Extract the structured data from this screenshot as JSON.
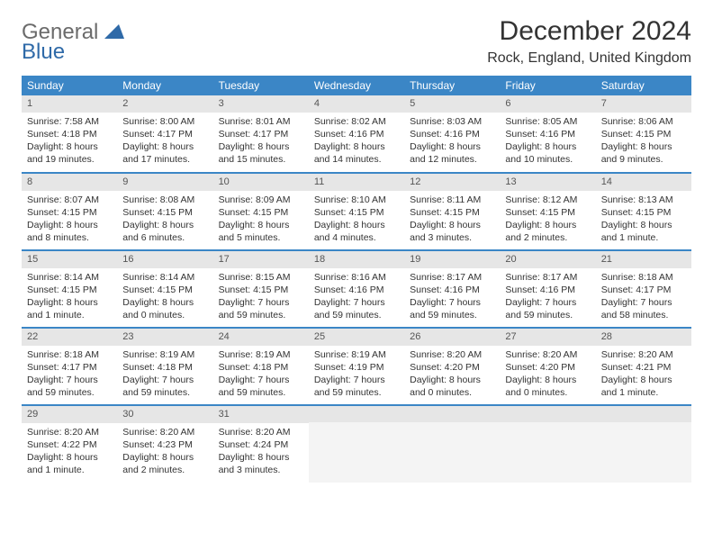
{
  "brand": {
    "text1": "General",
    "text2": "Blue"
  },
  "title": "December 2024",
  "location": "Rock, England, United Kingdom",
  "colors": {
    "header_bg": "#3b86c6",
    "header_fg": "#ffffff",
    "daynum_bg": "#e6e6e6",
    "rule": "#3b86c6",
    "logo_gray": "#6b6b6b",
    "logo_blue": "#2f6aa8"
  },
  "weekdays": [
    "Sunday",
    "Monday",
    "Tuesday",
    "Wednesday",
    "Thursday",
    "Friday",
    "Saturday"
  ],
  "weeks": [
    [
      {
        "n": "1",
        "sunrise": "Sunrise: 7:58 AM",
        "sunset": "Sunset: 4:18 PM",
        "day": "Daylight: 8 hours and 19 minutes."
      },
      {
        "n": "2",
        "sunrise": "Sunrise: 8:00 AM",
        "sunset": "Sunset: 4:17 PM",
        "day": "Daylight: 8 hours and 17 minutes."
      },
      {
        "n": "3",
        "sunrise": "Sunrise: 8:01 AM",
        "sunset": "Sunset: 4:17 PM",
        "day": "Daylight: 8 hours and 15 minutes."
      },
      {
        "n": "4",
        "sunrise": "Sunrise: 8:02 AM",
        "sunset": "Sunset: 4:16 PM",
        "day": "Daylight: 8 hours and 14 minutes."
      },
      {
        "n": "5",
        "sunrise": "Sunrise: 8:03 AM",
        "sunset": "Sunset: 4:16 PM",
        "day": "Daylight: 8 hours and 12 minutes."
      },
      {
        "n": "6",
        "sunrise": "Sunrise: 8:05 AM",
        "sunset": "Sunset: 4:16 PM",
        "day": "Daylight: 8 hours and 10 minutes."
      },
      {
        "n": "7",
        "sunrise": "Sunrise: 8:06 AM",
        "sunset": "Sunset: 4:15 PM",
        "day": "Daylight: 8 hours and 9 minutes."
      }
    ],
    [
      {
        "n": "8",
        "sunrise": "Sunrise: 8:07 AM",
        "sunset": "Sunset: 4:15 PM",
        "day": "Daylight: 8 hours and 8 minutes."
      },
      {
        "n": "9",
        "sunrise": "Sunrise: 8:08 AM",
        "sunset": "Sunset: 4:15 PM",
        "day": "Daylight: 8 hours and 6 minutes."
      },
      {
        "n": "10",
        "sunrise": "Sunrise: 8:09 AM",
        "sunset": "Sunset: 4:15 PM",
        "day": "Daylight: 8 hours and 5 minutes."
      },
      {
        "n": "11",
        "sunrise": "Sunrise: 8:10 AM",
        "sunset": "Sunset: 4:15 PM",
        "day": "Daylight: 8 hours and 4 minutes."
      },
      {
        "n": "12",
        "sunrise": "Sunrise: 8:11 AM",
        "sunset": "Sunset: 4:15 PM",
        "day": "Daylight: 8 hours and 3 minutes."
      },
      {
        "n": "13",
        "sunrise": "Sunrise: 8:12 AM",
        "sunset": "Sunset: 4:15 PM",
        "day": "Daylight: 8 hours and 2 minutes."
      },
      {
        "n": "14",
        "sunrise": "Sunrise: 8:13 AM",
        "sunset": "Sunset: 4:15 PM",
        "day": "Daylight: 8 hours and 1 minute."
      }
    ],
    [
      {
        "n": "15",
        "sunrise": "Sunrise: 8:14 AM",
        "sunset": "Sunset: 4:15 PM",
        "day": "Daylight: 8 hours and 1 minute."
      },
      {
        "n": "16",
        "sunrise": "Sunrise: 8:14 AM",
        "sunset": "Sunset: 4:15 PM",
        "day": "Daylight: 8 hours and 0 minutes."
      },
      {
        "n": "17",
        "sunrise": "Sunrise: 8:15 AM",
        "sunset": "Sunset: 4:15 PM",
        "day": "Daylight: 7 hours and 59 minutes."
      },
      {
        "n": "18",
        "sunrise": "Sunrise: 8:16 AM",
        "sunset": "Sunset: 4:16 PM",
        "day": "Daylight: 7 hours and 59 minutes."
      },
      {
        "n": "19",
        "sunrise": "Sunrise: 8:17 AM",
        "sunset": "Sunset: 4:16 PM",
        "day": "Daylight: 7 hours and 59 minutes."
      },
      {
        "n": "20",
        "sunrise": "Sunrise: 8:17 AM",
        "sunset": "Sunset: 4:16 PM",
        "day": "Daylight: 7 hours and 59 minutes."
      },
      {
        "n": "21",
        "sunrise": "Sunrise: 8:18 AM",
        "sunset": "Sunset: 4:17 PM",
        "day": "Daylight: 7 hours and 58 minutes."
      }
    ],
    [
      {
        "n": "22",
        "sunrise": "Sunrise: 8:18 AM",
        "sunset": "Sunset: 4:17 PM",
        "day": "Daylight: 7 hours and 59 minutes."
      },
      {
        "n": "23",
        "sunrise": "Sunrise: 8:19 AM",
        "sunset": "Sunset: 4:18 PM",
        "day": "Daylight: 7 hours and 59 minutes."
      },
      {
        "n": "24",
        "sunrise": "Sunrise: 8:19 AM",
        "sunset": "Sunset: 4:18 PM",
        "day": "Daylight: 7 hours and 59 minutes."
      },
      {
        "n": "25",
        "sunrise": "Sunrise: 8:19 AM",
        "sunset": "Sunset: 4:19 PM",
        "day": "Daylight: 7 hours and 59 minutes."
      },
      {
        "n": "26",
        "sunrise": "Sunrise: 8:20 AM",
        "sunset": "Sunset: 4:20 PM",
        "day": "Daylight: 8 hours and 0 minutes."
      },
      {
        "n": "27",
        "sunrise": "Sunrise: 8:20 AM",
        "sunset": "Sunset: 4:20 PM",
        "day": "Daylight: 8 hours and 0 minutes."
      },
      {
        "n": "28",
        "sunrise": "Sunrise: 8:20 AM",
        "sunset": "Sunset: 4:21 PM",
        "day": "Daylight: 8 hours and 1 minute."
      }
    ],
    [
      {
        "n": "29",
        "sunrise": "Sunrise: 8:20 AM",
        "sunset": "Sunset: 4:22 PM",
        "day": "Daylight: 8 hours and 1 minute."
      },
      {
        "n": "30",
        "sunrise": "Sunrise: 8:20 AM",
        "sunset": "Sunset: 4:23 PM",
        "day": "Daylight: 8 hours and 2 minutes."
      },
      {
        "n": "31",
        "sunrise": "Sunrise: 8:20 AM",
        "sunset": "Sunset: 4:24 PM",
        "day": "Daylight: 8 hours and 3 minutes."
      },
      null,
      null,
      null,
      null
    ]
  ]
}
